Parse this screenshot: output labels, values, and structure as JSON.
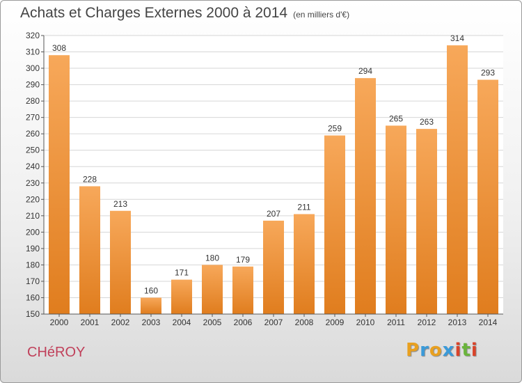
{
  "header": {
    "title": "Achats et Charges Externes 2000 à 2014",
    "subtitle": "(en milliers d'€)"
  },
  "footer": {
    "city": "CHéROY",
    "logo_letters": [
      "P",
      "r",
      "o",
      "x",
      "i",
      "t",
      "i"
    ],
    "logo_colors": [
      "#e8a020",
      "#3a9ad9",
      "#e8a020",
      "#3a9ad9",
      "#d9432a",
      "#6ab43c",
      "#d9432a"
    ]
  },
  "colors": {
    "bar_light": "#f7a85a",
    "bar_dark": "#e07d1e",
    "grid": "#d6d6d6",
    "axis": "#555555",
    "plot_bg": "#ffffff"
  },
  "chart_data": {
    "type": "bar",
    "title": "Achats et Charges Externes 2000 à 2014",
    "subtitle": "(en milliers d'€)",
    "categories": [
      "2000",
      "2001",
      "2002",
      "2003",
      "2004",
      "2005",
      "2006",
      "2007",
      "2008",
      "2009",
      "2010",
      "2011",
      "2012",
      "2013",
      "2014"
    ],
    "values": [
      308,
      228,
      213,
      160,
      171,
      180,
      179,
      207,
      211,
      259,
      294,
      265,
      263,
      314,
      293
    ],
    "xlabel": "",
    "ylabel": "",
    "ylim": [
      150,
      320
    ],
    "yticks": [
      150,
      160,
      170,
      180,
      190,
      200,
      210,
      220,
      230,
      240,
      250,
      260,
      270,
      280,
      290,
      300,
      310,
      320
    ],
    "grid": true,
    "data_labels": true
  }
}
